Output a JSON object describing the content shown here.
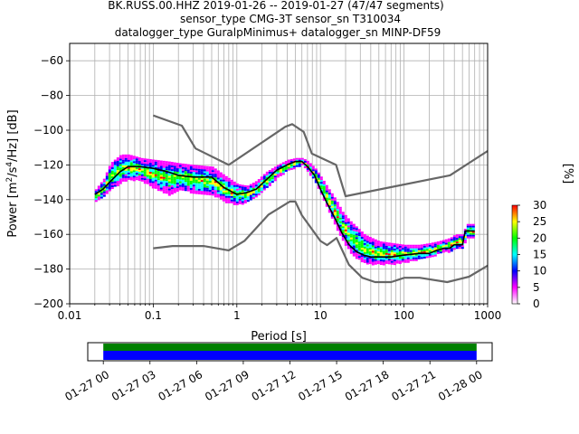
{
  "figure": {
    "title_lines": [
      "BK.RUSS.00.HHZ   2019-01-26 -- 2019-01-27  (47/47 segments)",
      "sensor_type CMG-3T sensor_sn T310034",
      "datalogger_type GuralpMinimus+ datalogger_sn MINP-DF59"
    ]
  },
  "chart_data": [
    {
      "type": "heatmap",
      "title": "",
      "xlabel": "Period [s]",
      "ylabel": "Power [m²/s⁴/Hz] [dB]",
      "x_scale": "log",
      "xlim": [
        0.01,
        1000
      ],
      "ylim": [
        -200,
        -50
      ],
      "x_tick_labels": [
        "0.01",
        "0.1",
        "1",
        "10",
        "100",
        "1000"
      ],
      "x_tick_values": [
        0.01,
        0.1,
        1,
        10,
        100,
        1000
      ],
      "y_ticks": [
        -200,
        -180,
        -160,
        -140,
        -120,
        -100,
        -80,
        -60
      ],
      "grid": true,
      "colorbar": {
        "label": "[%]",
        "min": 0,
        "max": 30,
        "ticks": [
          0,
          5,
          10,
          15,
          20,
          25,
          30
        ],
        "colors": [
          "#ffffff",
          "#ff00ff",
          "#0000ff",
          "#00ffff",
          "#00ff00",
          "#ffff00",
          "#ff0000"
        ]
      },
      "series": [
        {
          "name": "",
          "role": "high noise model",
          "color": "#666666",
          "x": [
            0.1,
            0.22,
            0.32,
            0.8,
            3.8,
            4.6,
            6.3,
            7.9,
            15.4,
            20,
            354.8,
            1000
          ],
          "y": [
            -91.5,
            -97.4,
            -110.5,
            -120.0,
            -98.0,
            -96.5,
            -101.0,
            -113.5,
            -120.0,
            -138.0,
            -126.0,
            -112.0
          ]
        },
        {
          "name": "",
          "role": "low noise model",
          "color": "#666666",
          "x": [
            0.1,
            0.17,
            0.4,
            0.8,
            1.24,
            2.4,
            4.3,
            5.0,
            6.0,
            10.0,
            12.0,
            15.6,
            21.9,
            31.6,
            45.0,
            70.0,
            101.0,
            154.0,
            328.0,
            600.0,
            1000.0
          ],
          "y": [
            -168.0,
            -166.7,
            -166.7,
            -169.2,
            -163.7,
            -148.6,
            -141.1,
            -141.1,
            -149.0,
            -163.8,
            -166.2,
            -162.1,
            -177.5,
            -185.0,
            -187.5,
            -187.5,
            -185.0,
            -185.0,
            -187.5,
            -184.4,
            -178.0
          ],
          "hidden_first_point": true
        },
        {
          "name": "",
          "role": "mode",
          "color": "#000000",
          "x": [
            0.02,
            0.025,
            0.03,
            0.04,
            0.05,
            0.07,
            0.1,
            0.15,
            0.2,
            0.3,
            0.5,
            0.7,
            1.0,
            1.3,
            1.7,
            2.2,
            3.0,
            4.0,
            5.0,
            6.0,
            7.0,
            8.5,
            10.0,
            12.0,
            15.0,
            18.0,
            22.0,
            27.0,
            33.0,
            40.0,
            50.0,
            70.0,
            100.0,
            150.0,
            200.0,
            250.0,
            300.0,
            350.0,
            400.0,
            500.0,
            540.0,
            700.0
          ],
          "y": [
            -137,
            -134,
            -130,
            -124,
            -121,
            -121,
            -122,
            -124,
            -126,
            -127,
            -127,
            -133,
            -137,
            -136,
            -134,
            -129,
            -123,
            -120,
            -118,
            -118,
            -121,
            -126,
            -134,
            -142,
            -151,
            -159,
            -166,
            -170,
            -172,
            -173,
            -173,
            -173,
            -172,
            -171,
            -171,
            -169,
            -168,
            -168,
            -166,
            -166,
            -158,
            -158
          ]
        }
      ],
      "density": [
        {
          "period": 0.02,
          "low": -141,
          "high": -134
        },
        {
          "period": 0.025,
          "low": -138,
          "high": -128
        },
        {
          "period": 0.03,
          "low": -134,
          "high": -119
        },
        {
          "period": 0.04,
          "low": -130,
          "high": -114
        },
        {
          "period": 0.05,
          "low": -128,
          "high": -114
        },
        {
          "period": 0.07,
          "low": -129,
          "high": -116
        },
        {
          "period": 0.1,
          "low": -133,
          "high": -117
        },
        {
          "period": 0.15,
          "low": -137,
          "high": -118
        },
        {
          "period": 0.2,
          "low": -134,
          "high": -119
        },
        {
          "period": 0.3,
          "low": -136,
          "high": -120
        },
        {
          "period": 0.5,
          "low": -137,
          "high": -121
        },
        {
          "period": 0.7,
          "low": -141,
          "high": -126
        },
        {
          "period": 1.0,
          "low": -143,
          "high": -131
        },
        {
          "period": 1.3,
          "low": -141,
          "high": -132
        },
        {
          "period": 1.7,
          "low": -138,
          "high": -129
        },
        {
          "period": 2.2,
          "low": -133,
          "high": -124
        },
        {
          "period": 3.0,
          "low": -127,
          "high": -120
        },
        {
          "period": 4.0,
          "low": -123,
          "high": -117
        },
        {
          "period": 5.0,
          "low": -121,
          "high": -116
        },
        {
          "period": 6.0,
          "low": -120,
          "high": -116
        },
        {
          "period": 7.0,
          "low": -124,
          "high": -118
        },
        {
          "period": 8.5,
          "low": -130,
          "high": -122
        },
        {
          "period": 10.0,
          "low": -137,
          "high": -127
        },
        {
          "period": 12.0,
          "low": -146,
          "high": -133
        },
        {
          "period": 15.0,
          "low": -156,
          "high": -140
        },
        {
          "period": 18.0,
          "low": -163,
          "high": -147
        },
        {
          "period": 22.0,
          "low": -170,
          "high": -152
        },
        {
          "period": 27.0,
          "low": -174,
          "high": -156
        },
        {
          "period": 33.0,
          "low": -176,
          "high": -160
        },
        {
          "period": 40.0,
          "low": -177,
          "high": -162
        },
        {
          "period": 50.0,
          "low": -177,
          "high": -164
        },
        {
          "period": 70.0,
          "low": -177,
          "high": -165
        },
        {
          "period": 100.0,
          "low": -176,
          "high": -166
        },
        {
          "period": 150.0,
          "low": -174,
          "high": -166
        },
        {
          "period": 200.0,
          "low": -173,
          "high": -165
        },
        {
          "period": 250.0,
          "low": -171,
          "high": -164
        },
        {
          "period": 300.0,
          "low": -170,
          "high": -163
        },
        {
          "period": 350.0,
          "low": -170,
          "high": -162
        },
        {
          "period": 400.0,
          "low": -168,
          "high": -160
        },
        {
          "period": 500.0,
          "low": -168,
          "high": -160
        },
        {
          "period": 540.0,
          "low": -162,
          "high": -154
        },
        {
          "period": 700.0,
          "low": -162,
          "high": -154
        }
      ]
    },
    {
      "type": "bar",
      "role": "data coverage",
      "xlim": [
        "2019-01-26 23:00",
        "2019-01-28 01:00"
      ],
      "x_tick_labels": [
        "01-27 00",
        "01-27 03",
        "01-27 06",
        "01-27 09",
        "01-27 12",
        "01-27 15",
        "01-27 18",
        "01-27 21",
        "01-28 00"
      ],
      "x_tick_values": [
        "2019-01-27 00:00",
        "2019-01-27 03:00",
        "2019-01-27 06:00",
        "2019-01-27 09:00",
        "2019-01-27 12:00",
        "2019-01-27 15:00",
        "2019-01-27 18:00",
        "2019-01-27 21:00",
        "2019-01-28 00:00"
      ],
      "bars": [
        {
          "start": "2019-01-27 00:00",
          "end": "2019-01-28 00:00",
          "color": "#008000",
          "row": "top"
        },
        {
          "start": "2019-01-27 00:00",
          "end": "2019-01-28 00:00",
          "color": "#0000ff",
          "row": "bottom"
        }
      ]
    }
  ]
}
